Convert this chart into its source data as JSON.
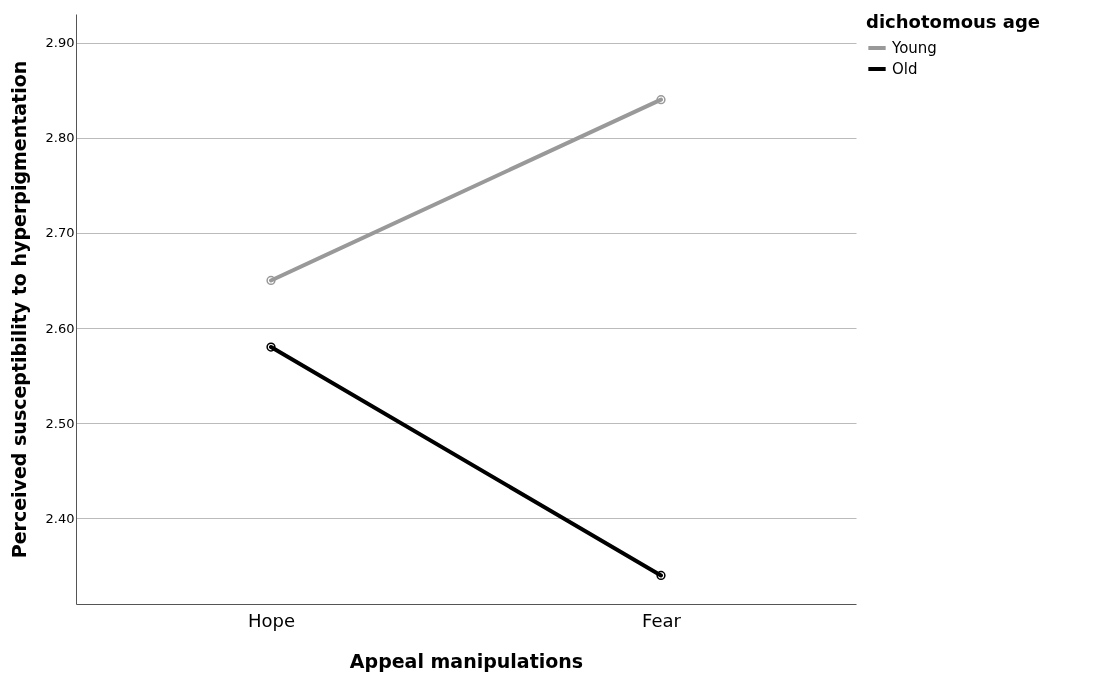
{
  "chart_data": {
    "type": "line",
    "xlabel": "Appeal manipulations",
    "ylabel": "Perceived susceptibility to hyperpigmentation",
    "legend_title": "dichotomous age",
    "categories": [
      "Hope",
      "Fear"
    ],
    "series": [
      {
        "name": "Young",
        "color": "#999999",
        "values": [
          2.65,
          2.84
        ]
      },
      {
        "name": "Old",
        "color": "#000000",
        "values": [
          2.58,
          2.34
        ]
      }
    ],
    "ylim": [
      2.31,
      2.93
    ],
    "yticks": [
      {
        "value": 2.4,
        "label": "2.40"
      },
      {
        "value": 2.5,
        "label": "2.50"
      },
      {
        "value": 2.6,
        "label": "2.60"
      },
      {
        "value": 2.7,
        "label": "2.70"
      },
      {
        "value": 2.8,
        "label": "2.80"
      },
      {
        "value": 2.9,
        "label": "2.90"
      }
    ],
    "grid": "y",
    "legend": "top right",
    "marker": "circle",
    "line_style": "solid"
  }
}
